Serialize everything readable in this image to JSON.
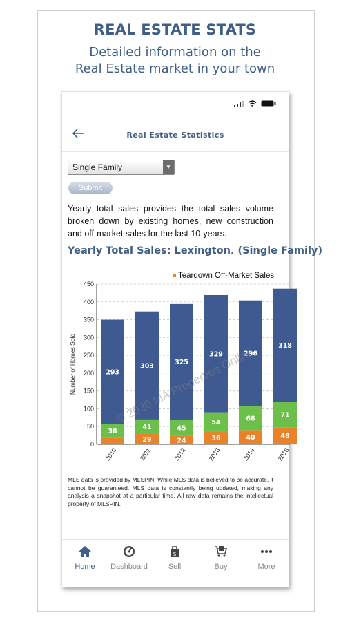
{
  "promo": {
    "title": "REAL ESTATE STATS",
    "subtitle_line1": "Detailed information on the",
    "subtitle_line2": "Real Estate market in your town"
  },
  "nav": {
    "back_icon": "arrow-left",
    "title": "Real Estate Statistics"
  },
  "form": {
    "select_value": "Single Family",
    "submit_label": "Submit"
  },
  "intro": "Yearly total sales provides the total sales volume broken down by existing homes, new construction and off-market sales for the last 10-years.",
  "chart_title": "Yearly Total Sales: Lexington. (Single Family)",
  "chart_data": {
    "type": "bar",
    "stacked": true,
    "title": "Yearly Total Sales: Lexington. (Single Family)",
    "ylabel": "Number of Homes Sold",
    "ylim": [
      0,
      450
    ],
    "yticks": [
      0,
      50,
      100,
      150,
      200,
      250,
      300,
      350,
      400,
      450
    ],
    "categories": [
      "2010",
      "2011",
      "2012",
      "2013",
      "2014",
      "2015"
    ],
    "legend_visible": "Teardown Off-Market Sales",
    "watermark": "© 2020 MA Properties Online",
    "series": [
      {
        "name": "Teardown Off-Market Sales",
        "color": "#e8832a",
        "values": [
          19,
          29,
          24,
          36,
          40,
          48
        ]
      },
      {
        "color": "#6cc04a",
        "values": [
          38,
          41,
          45,
          54,
          68,
          71
        ]
      },
      {
        "color": "#3f5a91",
        "values": [
          293,
          303,
          325,
          329,
          296,
          318
        ]
      }
    ],
    "labels": {
      "bottom": [
        "",
        "29",
        "24",
        "36",
        "40",
        "48"
      ],
      "middle": [
        "38",
        "41",
        "45",
        "54",
        "68",
        "71"
      ],
      "top": [
        "293",
        "303",
        "325",
        "329",
        "296",
        "318"
      ]
    }
  },
  "footnote": "MLS data is provided by MLSPIN. While MLS data is believed to be accurate, it cannot be guaranteed. MLS data is constantly being updated, making any analysis a snapshot at a particular time. All raw data remains the intellectual property of MLSPIN.",
  "tabs": [
    {
      "label": "Home",
      "icon": "home-icon",
      "active": true
    },
    {
      "label": "Dashboard",
      "icon": "dashboard-icon",
      "active": false
    },
    {
      "label": "Sell",
      "icon": "sell-icon",
      "active": false
    },
    {
      "label": "Buy",
      "icon": "buy-icon",
      "active": false
    },
    {
      "label": "More",
      "icon": "more-icon",
      "active": false
    }
  ],
  "colors": {
    "brand": "#3f5f86",
    "bar_existing": "#3f5a91",
    "bar_new": "#6cc04a",
    "bar_offmarket": "#e8832a"
  }
}
